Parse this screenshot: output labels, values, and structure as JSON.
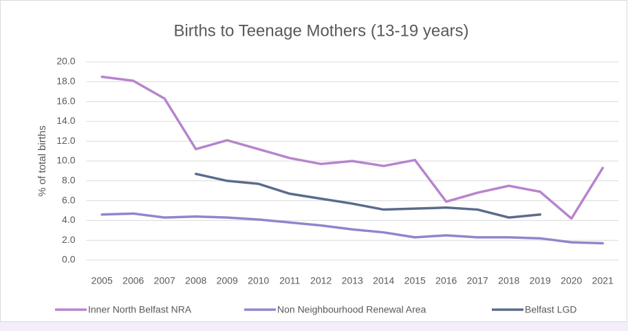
{
  "chart_data": {
    "type": "line",
    "title": "Births to Teenage Mothers (13-19 years)",
    "y_label": "% of total births",
    "categories": [
      "2005",
      "2006",
      "2007",
      "2008",
      "2009",
      "2010",
      "2011",
      "2012",
      "2013",
      "2014",
      "2015",
      "2016",
      "2017",
      "2018",
      "2019",
      "2020",
      "2021"
    ],
    "series": [
      {
        "name": "Inner North Belfast NRA",
        "color": "#b784cc",
        "values": [
          18.5,
          18.1,
          16.3,
          11.2,
          12.1,
          11.2,
          10.3,
          9.7,
          10.0,
          9.5,
          10.1,
          5.9,
          6.8,
          7.5,
          6.9,
          4.2,
          9.3
        ]
      },
      {
        "name": "Non Neighbourhood Renewal Area",
        "color": "#8f86cc",
        "values": [
          4.6,
          4.7,
          4.3,
          4.4,
          4.3,
          4.1,
          3.8,
          3.5,
          3.1,
          2.8,
          2.3,
          2.5,
          2.3,
          2.3,
          2.2,
          1.8,
          1.7
        ]
      },
      {
        "name": "Belfast LGD",
        "color": "#5a6b8c",
        "values": [
          null,
          null,
          null,
          8.7,
          8.0,
          7.7,
          6.7,
          6.2,
          5.7,
          5.1,
          5.2,
          5.3,
          5.1,
          4.3,
          4.6,
          null,
          null
        ]
      }
    ],
    "ylim": [
      0,
      20
    ],
    "yticks": [
      {
        "value": 0,
        "label": "0.0"
      },
      {
        "value": 2,
        "label": "2.0"
      },
      {
        "value": 4,
        "label": "4.0"
      },
      {
        "value": 6,
        "label": "6.0"
      },
      {
        "value": 8,
        "label": "8.0"
      },
      {
        "value": 10,
        "label": "10.0"
      },
      {
        "value": 12,
        "label": "12.0"
      },
      {
        "value": 14,
        "label": "14.0"
      },
      {
        "value": 16,
        "label": "16.0"
      },
      {
        "value": 18,
        "label": "18.0"
      },
      {
        "value": 20,
        "label": "20.0"
      }
    ],
    "grid": true,
    "legend": "bottom"
  }
}
